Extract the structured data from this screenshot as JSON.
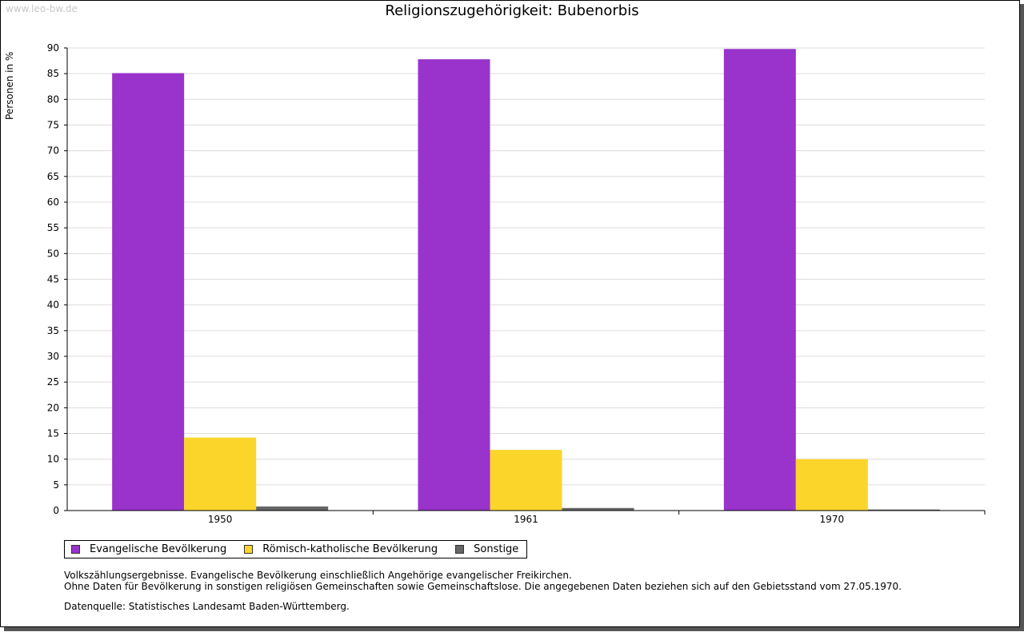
{
  "watermark": "www.leo-bw.de",
  "chart_data": {
    "type": "bar",
    "title": "Religionszugehörigkeit: Bubenorbis",
    "ylabel": "Personen in %",
    "xlabel": "",
    "categories": [
      "1950",
      "1961",
      "1970"
    ],
    "series": [
      {
        "name": "Evangelische Bevölkerung",
        "color": "#9933cc",
        "values": [
          85.1,
          87.8,
          89.8
        ]
      },
      {
        "name": "Römisch-katholische Bevölkerung",
        "color": "#fcd52a",
        "values": [
          14.2,
          11.8,
          10.0
        ]
      },
      {
        "name": "Sonstige",
        "color": "#666666",
        "values": [
          0.8,
          0.5,
          0.2
        ]
      }
    ],
    "ylim": [
      0,
      90
    ],
    "ytick_step": 5,
    "grid": true,
    "legend_position": "bottom-left"
  },
  "notes": [
    "Volkszählungsergebnisse. Evangelische Bevölkerung einschließlich Angehörige evangelischer Freikirchen.",
    "Ohne Daten für Bevölkerung in sonstigen religiösen Gemeinschaften sowie Gemeinschaftslose. Die angegebenen Daten beziehen sich auf den Gebietsstand vom 27.05.1970."
  ],
  "source": "Datenquelle: Statistisches Landesamt Baden-Württemberg."
}
